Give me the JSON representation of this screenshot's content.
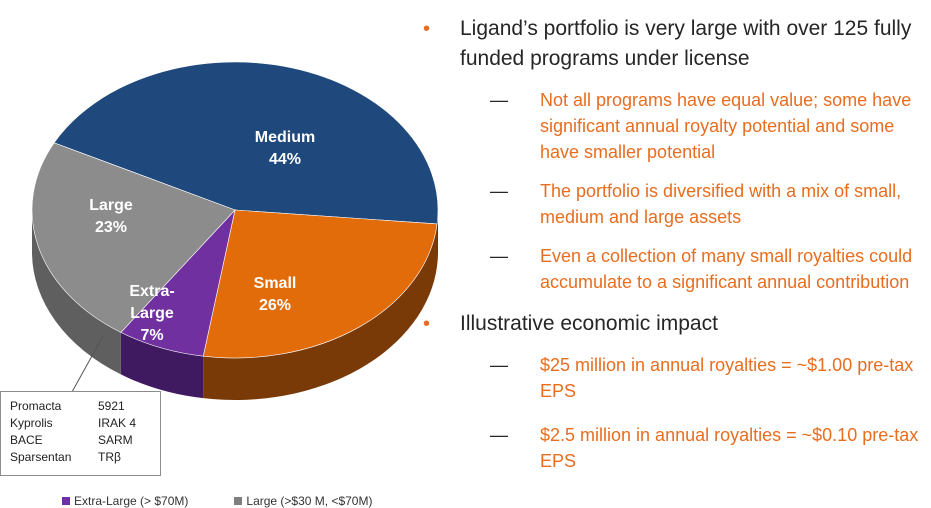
{
  "chart_data": {
    "type": "pie",
    "slices": [
      {
        "label_lines": [
          "Medium",
          "44%"
        ],
        "value": 44,
        "color": "#1f497d",
        "side_color": "#162f52"
      },
      {
        "label_lines": [
          "Small",
          "26%"
        ],
        "value": 26,
        "color": "#e36c0a",
        "side_color": "#7a3a08"
      },
      {
        "label_lines": [
          "Extra-",
          "Large",
          "7%"
        ],
        "value": 7,
        "color": "#7030a0",
        "side_color": "#401a60"
      },
      {
        "label_lines": [
          "Large",
          "23%"
        ],
        "value": 23,
        "color": "#8c8c8c",
        "side_color": "#5f5f5f"
      }
    ],
    "legend": [
      {
        "label": "Extra-Large (> $70M)",
        "color": "#7030a0"
      },
      {
        "label": "Large (>$30 M, <$70M)",
        "color": "#7f7f7f"
      }
    ]
  },
  "callout": {
    "rows": [
      [
        "Promacta",
        "5921"
      ],
      [
        "Kyprolis",
        "IRAK 4"
      ],
      [
        "BACE",
        "SARM"
      ],
      [
        "Sparsentan",
        "TRβ"
      ]
    ]
  },
  "bullets": [
    {
      "text": "Ligand’s portfolio is very large with over 125 fully funded programs under license",
      "sub": [
        "Not all programs have equal value; some have significant annual royalty potential and some have smaller potential",
        "The portfolio is diversified with a mix of small, medium and large assets",
        "Even a collection of many small royalties could accumulate to a significant annual contribution"
      ]
    },
    {
      "text": "Illustrative economic impact",
      "sub": [
        "$25 million in annual royalties = ~$1.00 pre-tax EPS",
        "$2.5 million in annual royalties = ~$0.10 pre-tax EPS"
      ]
    }
  ],
  "bullet_marker": "•",
  "dash_marker": "—"
}
